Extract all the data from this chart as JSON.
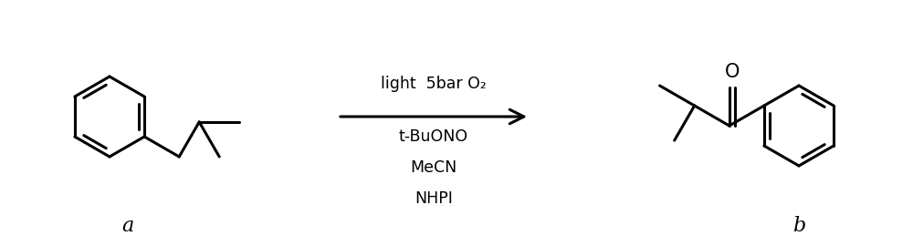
{
  "background_color": "#ffffff",
  "text_color": "#000000",
  "line_color": "#000000",
  "line_width": 2.2,
  "arrow_label_above": "light  5bar O₂",
  "arrow_label_below1": "t-BuONO",
  "arrow_label_below2": "MeCN",
  "arrow_label_below3": "NHPI",
  "label_a": "a",
  "label_b": "b",
  "figsize": [
    10.0,
    2.7
  ],
  "dpi": 100
}
